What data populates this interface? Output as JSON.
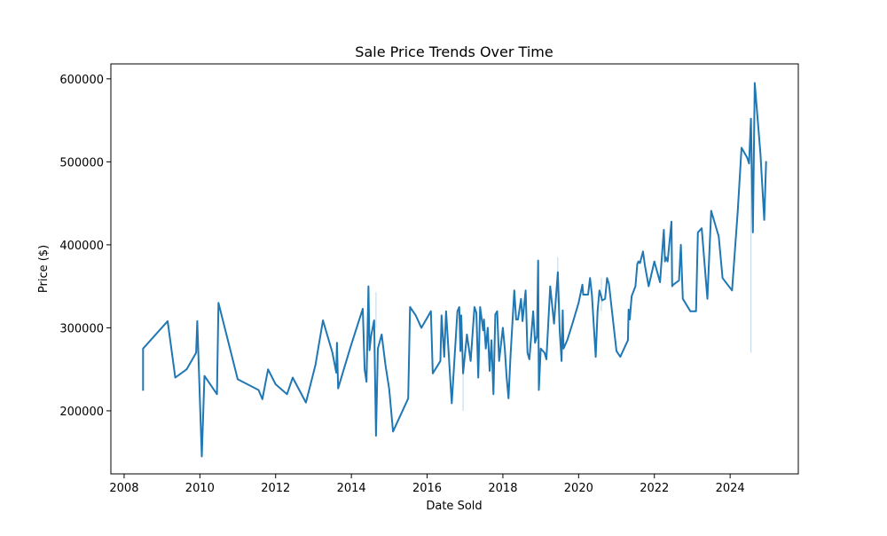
{
  "chart_data": {
    "type": "line",
    "title": "Sale Price Trends Over Time",
    "xlabel": "Date Sold",
    "ylabel": "Price ($)",
    "xlim": [
      2007.65,
      2025.8
    ],
    "ylim": [
      124000,
      618000
    ],
    "x_ticks": [
      2008,
      2010,
      2012,
      2014,
      2016,
      2018,
      2020,
      2022,
      2024
    ],
    "y_ticks": [
      200000,
      300000,
      400000,
      500000,
      600000
    ],
    "x_tick_labels": [
      "2008",
      "2010",
      "2012",
      "2014",
      "2016",
      "2018",
      "2020",
      "2022",
      "2024"
    ],
    "y_tick_labels": [
      "200000",
      "300000",
      "400000",
      "500000",
      "600000"
    ],
    "grid": false,
    "colors": {
      "line": "#1f77b4",
      "band": "#1f77b4"
    },
    "series": [
      {
        "x": [
          2008.5,
          2008.5,
          2009.15,
          2009.35,
          2009.65,
          2009.9,
          2009.93,
          2010.05,
          2010.12,
          2010.45,
          2010.49,
          2011.0,
          2011.55,
          2011.65,
          2011.8,
          2012.0,
          2012.3,
          2012.45,
          2012.8,
          2013.05,
          2013.25,
          2013.5,
          2013.6,
          2013.62,
          2013.65,
          2013.8,
          2014.0,
          2014.3,
          2014.35,
          2014.4,
          2014.45,
          2014.48,
          2014.52,
          2014.6,
          2014.65,
          2014.7,
          2014.8,
          2014.9,
          2015.0,
          2015.1,
          2015.5,
          2015.55,
          2015.7,
          2015.85,
          2016.1,
          2016.15,
          2016.35,
          2016.38,
          2016.45,
          2016.5,
          2016.65,
          2016.8,
          2016.85,
          2016.88,
          2016.9,
          2016.95,
          2017.05,
          2017.15,
          2017.25,
          2017.3,
          2017.35,
          2017.4,
          2017.48,
          2017.5,
          2017.55,
          2017.6,
          2017.65,
          2017.7,
          2017.75,
          2017.8,
          2017.85,
          2017.9,
          2018.0,
          2018.05,
          2018.1,
          2018.15,
          2018.2,
          2018.3,
          2018.35,
          2018.4,
          2018.48,
          2018.52,
          2018.6,
          2018.65,
          2018.7,
          2018.8,
          2018.85,
          2018.9,
          2018.93,
          2018.95,
          2019.0,
          2019.1,
          2019.15,
          2019.25,
          2019.35,
          2019.45,
          2019.5,
          2019.55,
          2019.58,
          2019.6,
          2019.7,
          2019.85,
          2020.0,
          2020.1,
          2020.12,
          2020.18,
          2020.25,
          2020.3,
          2020.35,
          2020.45,
          2020.5,
          2020.55,
          2020.6,
          2020.62,
          2020.7,
          2020.75,
          2020.8,
          2021.0,
          2021.1,
          2021.3,
          2021.32,
          2021.35,
          2021.4,
          2021.5,
          2021.55,
          2021.58,
          2021.62,
          2021.7,
          2021.75,
          2021.85,
          2022.0,
          2022.15,
          2022.25,
          2022.28,
          2022.3,
          2022.35,
          2022.45,
          2022.47,
          2022.5,
          2022.65,
          2022.7,
          2022.75,
          2022.95,
          2023.1,
          2023.15,
          2023.25,
          2023.4,
          2023.5,
          2023.7,
          2023.8,
          2024.05,
          2024.2,
          2024.3,
          2024.45,
          2024.5,
          2024.55,
          2024.6,
          2024.65,
          2024.8,
          2024.9,
          2024.95
        ],
        "y": [
          225000,
          275000,
          308000,
          240000,
          250000,
          270000,
          308000,
          145000,
          242000,
          220000,
          330000,
          238000,
          225000,
          214000,
          250000,
          232000,
          220000,
          240000,
          210000,
          255000,
          309000,
          270000,
          246000,
          282000,
          227000,
          250000,
          280000,
          323000,
          250000,
          235000,
          350000,
          273000,
          290000,
          309000,
          170000,
          275000,
          292000,
          255000,
          226000,
          175000,
          215000,
          325000,
          315000,
          300000,
          320000,
          245000,
          260000,
          315000,
          265000,
          320000,
          209000,
          320000,
          325000,
          272000,
          315000,
          245000,
          292000,
          260000,
          325000,
          318000,
          240000,
          325000,
          297000,
          310000,
          275000,
          300000,
          248000,
          285000,
          220000,
          316000,
          320000,
          260000,
          300000,
          275000,
          240000,
          215000,
          265000,
          345000,
          310000,
          310000,
          335000,
          308000,
          345000,
          270000,
          262000,
          320000,
          282000,
          290000,
          381000,
          225000,
          275000,
          270000,
          262000,
          350000,
          305000,
          367000,
          297000,
          260000,
          321000,
          275000,
          285000,
          307000,
          330000,
          352000,
          340000,
          340000,
          340000,
          360000,
          340000,
          265000,
          320000,
          345000,
          337000,
          333000,
          335000,
          360000,
          353000,
          272000,
          265000,
          285000,
          322000,
          310000,
          338000,
          350000,
          377000,
          380000,
          378000,
          392000,
          375000,
          350000,
          380000,
          355000,
          418000,
          380000,
          385000,
          380000,
          428000,
          350000,
          352000,
          357000,
          400000,
          335000,
          320000,
          320000,
          415000,
          420000,
          335000,
          441000,
          410000,
          360000,
          345000,
          440000,
          517000,
          505000,
          498000,
          552000,
          415000,
          595000,
          510000,
          430000,
          500000
        ]
      }
    ],
    "band_segments": [
      {
        "x": 2014.65,
        "y_low": 300000,
        "y_high": 343000
      },
      {
        "x": 2016.95,
        "y_low": 200000,
        "y_high": 260000
      },
      {
        "x": 2019.45,
        "y_low": 330000,
        "y_high": 385000
      },
      {
        "x": 2020.6,
        "y_low": 320000,
        "y_high": 360000
      },
      {
        "x": 2024.55,
        "y_low": 270000,
        "y_high": 552000
      }
    ]
  }
}
